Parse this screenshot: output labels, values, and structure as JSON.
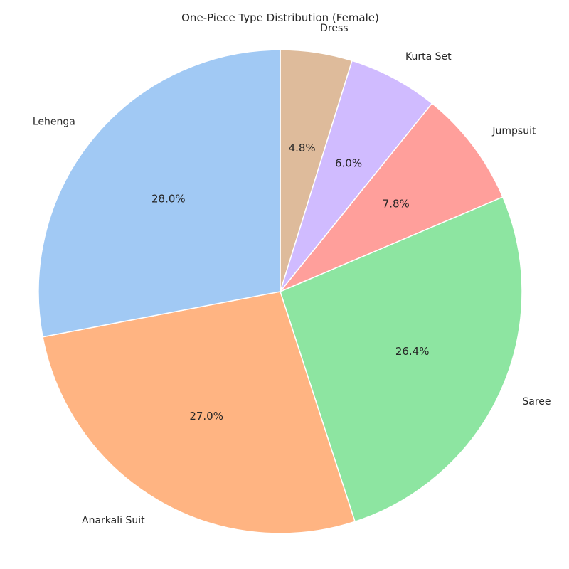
{
  "chart_data": {
    "type": "pie",
    "title": "One-Piece Type Distribution (Female)",
    "start_angle_deg": 90,
    "direction": "clockwise",
    "slices": [
      {
        "label": "Dress",
        "value": 4.8,
        "pct_label": "4.8%",
        "color": "#debb9b"
      },
      {
        "label": "Kurta Set",
        "value": 6.0,
        "pct_label": "6.0%",
        "color": "#d0bbff"
      },
      {
        "label": "Jumpsuit",
        "value": 7.8,
        "pct_label": "7.8%",
        "color": "#ff9f9b"
      },
      {
        "label": "Saree",
        "value": 26.4,
        "pct_label": "26.4%",
        "color": "#8de5a1"
      },
      {
        "label": "Anarkali Suit",
        "value": 27.0,
        "pct_label": "27.0%",
        "color": "#ffb482"
      },
      {
        "label": "Lehenga",
        "value": 28.0,
        "pct_label": "28.0%",
        "color": "#a1c9f4"
      }
    ],
    "edge_color": "#ffffff",
    "legend": "none"
  }
}
